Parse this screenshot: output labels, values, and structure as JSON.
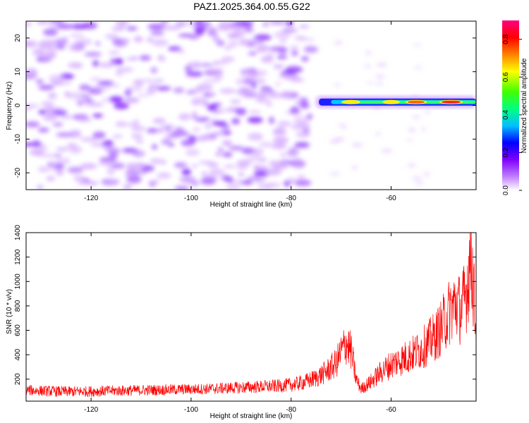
{
  "figure": {
    "title": "PAZ1.2025.364.00.55.G22"
  },
  "chart_data": [
    {
      "type": "heatmap",
      "xlabel": "Height of straight line (km)",
      "ylabel": "Frequency (Hz)",
      "xlim": [
        -133,
        -43
      ],
      "ylim": [
        -25,
        25
      ],
      "xticks": [
        -120,
        -100,
        -80,
        -60
      ],
      "xtick_labels": [
        "-120",
        "-100",
        "-80",
        "-60"
      ],
      "yticks": [
        -20,
        -10,
        0,
        10,
        20
      ],
      "ytick_labels": [
        "-20",
        "-10",
        "0",
        "10",
        "20"
      ],
      "colorbar": {
        "label": "Normalized spectral amplitude",
        "ticks": [
          0.0,
          0.2,
          0.4,
          0.6,
          0.8
        ],
        "tick_labels": [
          "0.0",
          "0.2",
          "0.4",
          "0.6",
          "0.8"
        ],
        "range": [
          0,
          0.9
        ],
        "colors": [
          "#ffffff",
          "#c080ff",
          "#8000ff",
          "#0000ff",
          "#00c0ff",
          "#00ff80",
          "#40ff00",
          "#ffff00",
          "#ff8000",
          "#ff0000",
          "#ff0080"
        ]
      },
      "signal_band": {
        "description_free": true,
        "x_start": -75,
        "x_end": -43,
        "freq_center": 1,
        "peaks": [
          {
            "x": -68,
            "amplitude": 0.6
          },
          {
            "x": -60,
            "amplitude": 0.55
          },
          {
            "x": -55,
            "amplitude": 0.75
          },
          {
            "x": -48,
            "amplitude": 0.85
          }
        ]
      },
      "noise_region": {
        "x_start": -133,
        "x_end": -76,
        "amplitude": 0.18
      }
    },
    {
      "type": "line",
      "xlabel": "Height of straight line (km)",
      "ylabel": "SNR (10 * v/v)",
      "xlim": [
        -133,
        -43
      ],
      "ylim": [
        20,
        1400
      ],
      "xticks": [
        -120,
        -100,
        -80,
        -60
      ],
      "xtick_labels": [
        "-120",
        "-100",
        "-80",
        "-60"
      ],
      "yticks": [
        200,
        400,
        600,
        800,
        1000,
        1200,
        1400
      ],
      "ytick_labels": [
        "200",
        "400",
        "600",
        "800",
        "1000",
        "1200",
        "1400"
      ],
      "line_color": "#ff0000",
      "series": [
        {
          "name": "SNR",
          "x": [
            -133,
            -130,
            -127,
            -124,
            -121,
            -118,
            -115,
            -112,
            -109,
            -106,
            -103,
            -100,
            -97,
            -94,
            -91,
            -88,
            -85,
            -82,
            -79,
            -77,
            -75,
            -73,
            -71,
            -70,
            -69,
            -68,
            -67,
            -66,
            -65,
            -64,
            -63,
            -62,
            -61,
            -60,
            -59,
            -58,
            -57,
            -56,
            -55,
            -54,
            -53,
            -52,
            -51,
            -50,
            -49,
            -48,
            -47,
            -46,
            -45,
            -44,
            -43
          ],
          "y": [
            110,
            105,
            100,
            98,
            100,
            102,
            105,
            108,
            110,
            112,
            115,
            118,
            120,
            125,
            130,
            135,
            140,
            145,
            160,
            180,
            210,
            260,
            330,
            420,
            500,
            430,
            200,
            120,
            150,
            180,
            220,
            260,
            290,
            320,
            340,
            360,
            380,
            400,
            420,
            450,
            480,
            520,
            560,
            620,
            700,
            780,
            820,
            760,
            900,
            1250,
            600
          ]
        }
      ]
    }
  ]
}
